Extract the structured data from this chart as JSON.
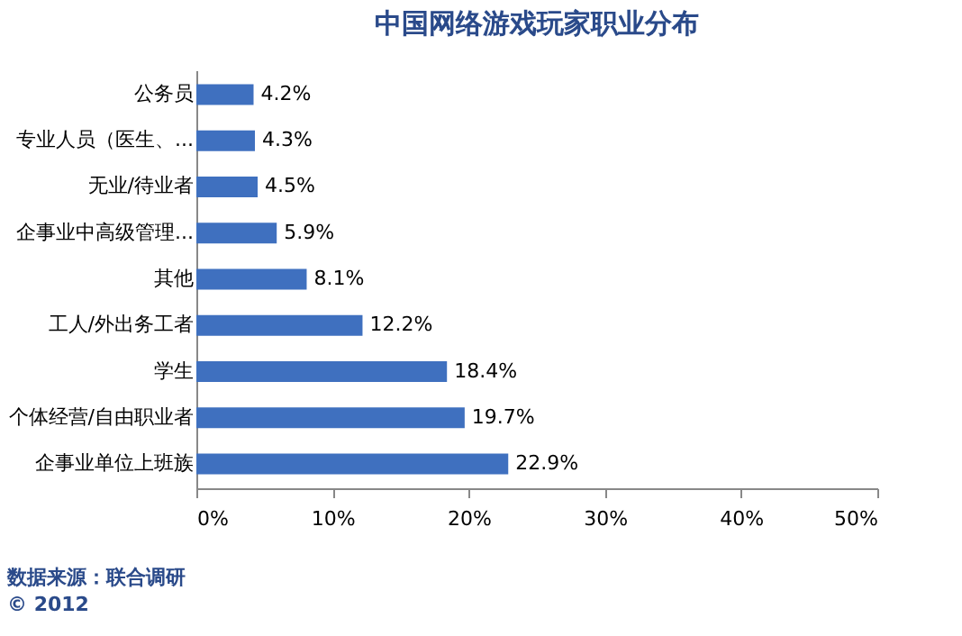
{
  "chart_data": {
    "type": "bar",
    "orientation": "horizontal",
    "title": "中国网络游戏玩家职业分布",
    "categories": [
      "公务员",
      "专业人员（医生、...",
      "无业/待业者",
      "企事业中高级管理...",
      "其他",
      "工人/外出务工者",
      "学生",
      "个体经营/自由职业者",
      "企事业单位上班族"
    ],
    "values": [
      4.2,
      4.3,
      4.5,
      5.9,
      8.1,
      12.2,
      18.4,
      19.7,
      22.9
    ],
    "value_labels": [
      "4.2%",
      "4.3%",
      "4.5%",
      "5.9%",
      "8.1%",
      "12.2%",
      "18.4%",
      "19.7%",
      "22.9%"
    ],
    "color": "#3f70bf",
    "xlim": [
      0,
      50
    ],
    "xticks": [
      {
        "value": 0,
        "label": "0%"
      },
      {
        "value": 10,
        "label": "10%"
      },
      {
        "value": 20,
        "label": "20%"
      },
      {
        "value": 30,
        "label": "30%"
      },
      {
        "value": 40,
        "label": "40%"
      },
      {
        "value": 50,
        "label": "50%"
      }
    ],
    "grid": false,
    "annotations": [
      "数据来源：联合调研",
      "© 2012"
    ]
  }
}
